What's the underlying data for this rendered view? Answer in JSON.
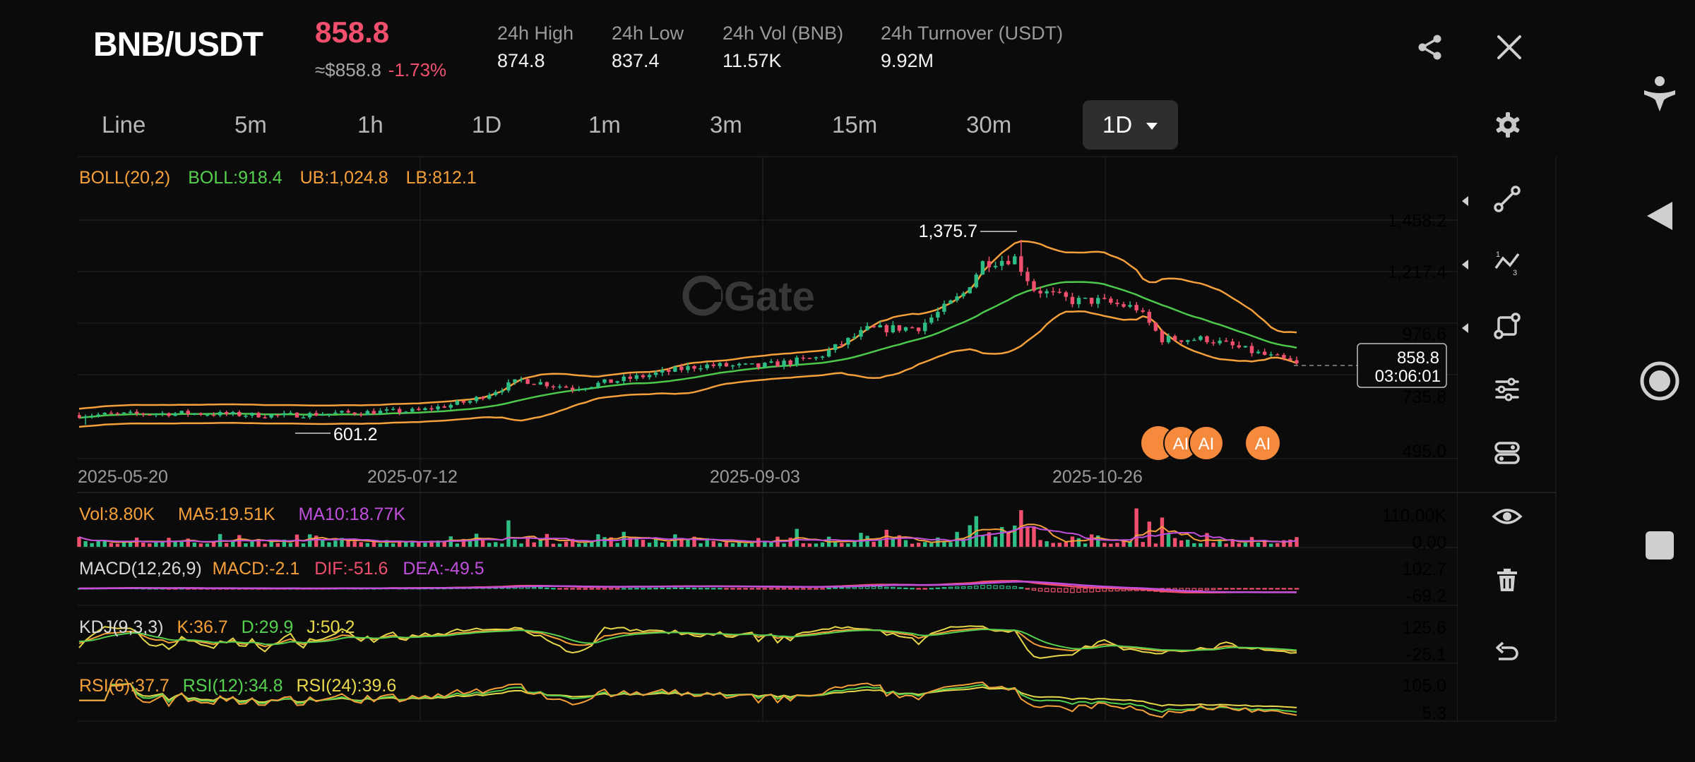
{
  "header": {
    "symbol": "BNB/USDT",
    "last_price": "858.8",
    "approx_usd": "≈$858.8",
    "change_pct": "-1.73%",
    "stats": [
      {
        "label": "24h High",
        "value": "874.8"
      },
      {
        "label": "24h Low",
        "value": "837.4"
      },
      {
        "label": "24h Vol (BNB)",
        "value": "11.57K"
      },
      {
        "label": "24h Turnover (USDT)",
        "value": "9.92M"
      }
    ],
    "share_icon": "share-icon",
    "close_icon": "close-icon"
  },
  "tabs": {
    "items": [
      "Line",
      "5m",
      "1h",
      "1D",
      "1m",
      "3m",
      "15m",
      "30m"
    ],
    "active": "1D",
    "settings_icon": "gear-icon"
  },
  "main_chart": {
    "indicator_name": "BOLL(20,2)",
    "boll": "BOLL:918.4",
    "ub": "UB:1,024.8",
    "lb": "LB:812.1",
    "y_ticks": [
      "1,458.2",
      "1,217.4",
      "976.6",
      "735.8",
      "495.0"
    ],
    "x_ticks": [
      "2025-05-20",
      "2025-07-12",
      "2025-09-03",
      "2025-10-26"
    ],
    "high_label": "1,375.7",
    "low_label": "601.2",
    "current_price": "858.8",
    "countdown": "03:06:01",
    "watermark": "Gate",
    "ai_badge": "AI",
    "colors": {
      "up": "#2ebd85",
      "down": "#f0506e",
      "boll": "#4cc84c",
      "band": "#f5a03a"
    }
  },
  "volume": {
    "vol": "Vol:8.80K",
    "ma5": "MA5:19.51K",
    "ma10": "MA10:18.77K",
    "y_max": "110.00K",
    "y_min": "0.00"
  },
  "macd": {
    "name": "MACD(12,26,9)",
    "macd": "MACD:-2.1",
    "dif": "DIF:-51.6",
    "dea": "DEA:-49.5",
    "y_max": "102.7",
    "y_min": "-69.2"
  },
  "kdj": {
    "name": "KDJ(9,3,3)",
    "k": "K:36.7",
    "d": "D:29.9",
    "j": "J:50.2",
    "y_max": "125.6",
    "y_min": "-25.1"
  },
  "rsi": {
    "r6": "RSI(6):37.7",
    "r12": "RSI(12):34.8",
    "r24": "RSI(24):39.6",
    "y_max": "105.0",
    "y_min": "5.3"
  },
  "toolbar": [
    "trend-line-icon",
    "fib-icon",
    "shape-icon",
    "indicator-settings-icon",
    "toggle-icon",
    "eye-icon",
    "trash-icon",
    "undo-icon"
  ],
  "system_nav": [
    "accessibility-icon",
    "back-icon",
    "home-icon",
    "recents-icon"
  ],
  "chart_data": {
    "type": "candlestick",
    "pair": "BNB/USDT",
    "interval": "1D",
    "date_range": [
      "2025-05-20",
      "2025-11-26"
    ],
    "y_range": [
      495.0,
      1458.2
    ],
    "annotated_high": 1375.7,
    "annotated_low": 601.2,
    "last_close": 858.8,
    "bollinger": {
      "mid": 918.4,
      "upper": 1024.8,
      "lower": 812.1
    },
    "close_series": [
      {
        "x": "2025-05-20",
        "y": 642
      },
      {
        "x": "2025-06-05",
        "y": 650
      },
      {
        "x": "2025-06-20",
        "y": 640
      },
      {
        "x": "2025-07-05",
        "y": 655
      },
      {
        "x": "2025-07-12",
        "y": 660
      },
      {
        "x": "2025-07-20",
        "y": 700
      },
      {
        "x": "2025-07-28",
        "y": 790
      },
      {
        "x": "2025-08-05",
        "y": 755
      },
      {
        "x": "2025-08-15",
        "y": 800
      },
      {
        "x": "2025-08-25",
        "y": 850
      },
      {
        "x": "2025-09-03",
        "y": 845
      },
      {
        "x": "2025-09-12",
        "y": 880
      },
      {
        "x": "2025-09-20",
        "y": 1000
      },
      {
        "x": "2025-09-28",
        "y": 1010
      },
      {
        "x": "2025-10-05",
        "y": 1150
      },
      {
        "x": "2025-10-08",
        "y": 1280
      },
      {
        "x": "2025-10-13",
        "y": 1300
      },
      {
        "x": "2025-10-16",
        "y": 1170
      },
      {
        "x": "2025-10-22",
        "y": 1120
      },
      {
        "x": "2025-10-26",
        "y": 1120
      },
      {
        "x": "2025-11-01",
        "y": 1090
      },
      {
        "x": "2025-11-05",
        "y": 960
      },
      {
        "x": "2025-11-12",
        "y": 960
      },
      {
        "x": "2025-11-20",
        "y": 900
      },
      {
        "x": "2025-11-26",
        "y": 858.8
      }
    ],
    "grid": true
  }
}
